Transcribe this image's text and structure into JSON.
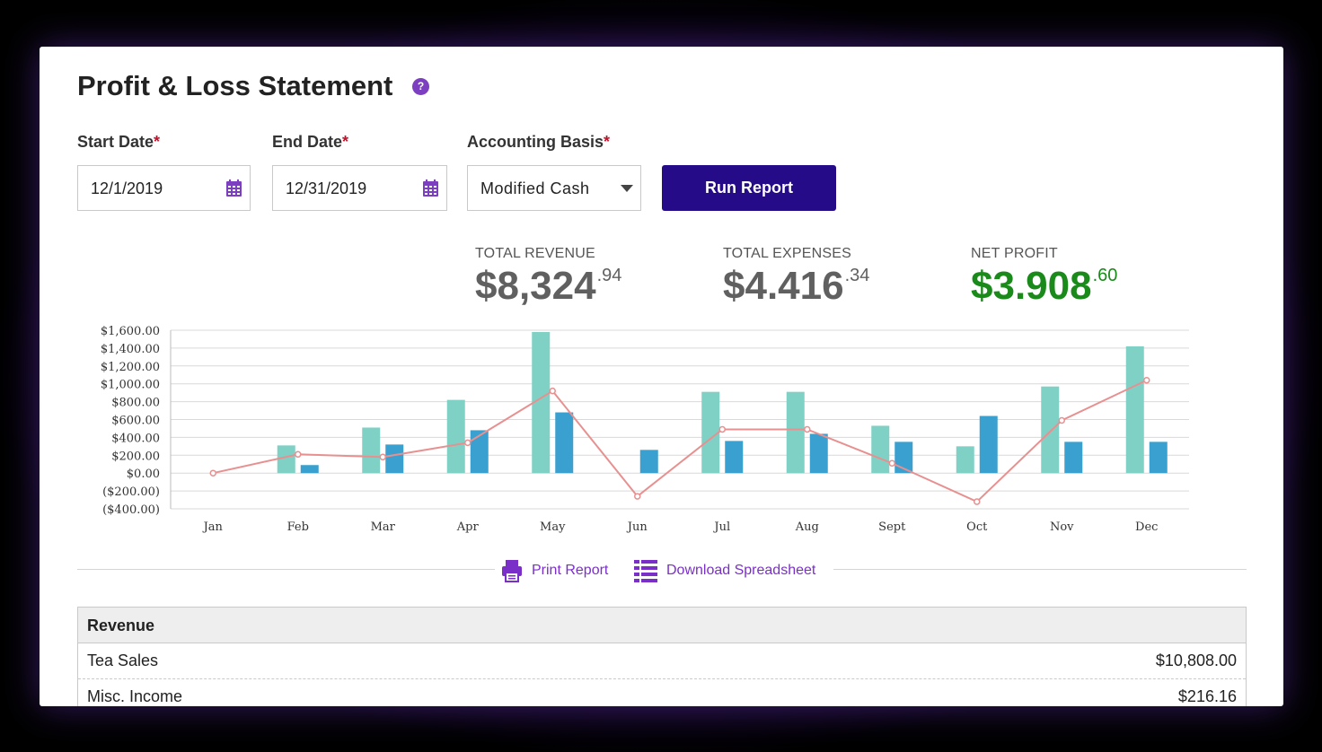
{
  "title": "Profit & Loss Statement",
  "help_icon_glyph": "?",
  "form": {
    "start_date": {
      "label": "Start Date",
      "value": "12/1/2019"
    },
    "end_date": {
      "label": "End Date",
      "value": "12/31/2019"
    },
    "basis": {
      "label": "Accounting Basis",
      "value": "Modified Cash"
    },
    "required_mark": "*",
    "run_label": "Run Report"
  },
  "kpis": {
    "revenue": {
      "label": "TOTAL REVENUE",
      "main": "$8,324",
      "cents": ".94"
    },
    "expenses": {
      "label": "TOTAL EXPENSES",
      "main": "$4.416",
      "cents": ".34"
    },
    "net": {
      "label": "NET PROFIT",
      "main": "$3.908",
      "cents": ".60"
    }
  },
  "colors": {
    "revenue_bar": "#7fd1c6",
    "expense_bar": "#3aa0cf",
    "net_line": "#e89090",
    "net_profit_text": "#1a8a1a",
    "accent": "#7b2fc9",
    "button": "#250b87"
  },
  "chart_data": {
    "type": "bar",
    "categories": [
      "Jan",
      "Feb",
      "Mar",
      "Apr",
      "May",
      "Jun",
      "Jul",
      "Aug",
      "Sept",
      "Oct",
      "Nov",
      "Dec"
    ],
    "series": [
      {
        "type": "bar",
        "values": [
          0,
          310,
          510,
          820,
          1580,
          0,
          910,
          910,
          530,
          300,
          970,
          1420
        ]
      },
      {
        "type": "bar",
        "values": [
          0,
          90,
          320,
          480,
          680,
          260,
          360,
          440,
          350,
          640,
          350,
          350
        ]
      },
      {
        "type": "line",
        "values": [
          0,
          210,
          180,
          340,
          920,
          -260,
          490,
          490,
          110,
          -320,
          590,
          1040
        ]
      }
    ],
    "y_ticks": [
      "$1,600.00",
      "$1,400.00",
      "$1,200.00",
      "$1,000.00",
      "$800.00",
      "$600.00",
      "$400.00",
      "$200.00",
      "$0.00",
      "($200.00)",
      "($400.00)"
    ],
    "ylim": [
      -400,
      1600
    ],
    "grid": true,
    "title": "",
    "xlabel": "",
    "ylabel": ""
  },
  "actions": {
    "print_label": "Print Report",
    "download_label": "Download Spreadsheet"
  },
  "report": {
    "section": "Revenue",
    "rows": [
      {
        "name": "Tea Sales",
        "amount": "$10,808.00"
      },
      {
        "name": "Misc. Income",
        "amount": "$216.16"
      }
    ]
  }
}
